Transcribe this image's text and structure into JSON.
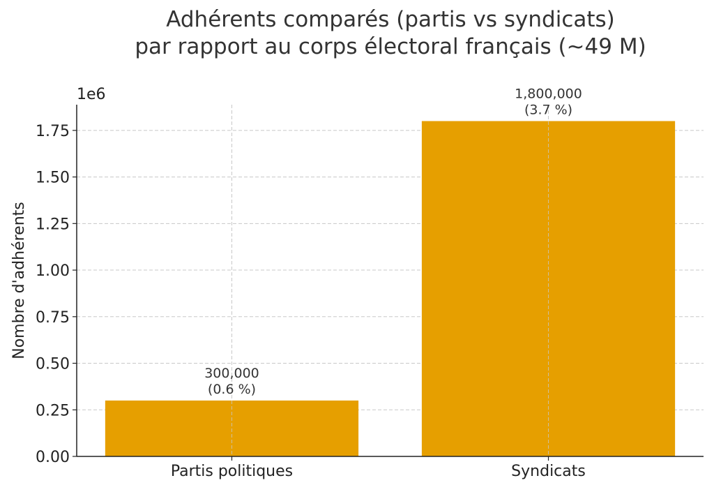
{
  "chart_data": {
    "type": "bar",
    "title_lines": [
      "Adhérents comparés (partis vs syndicats)",
      "par rapport au corps électoral français (~49 M)"
    ],
    "xlabel": "",
    "ylabel": "Nombre d'adhérents",
    "y_offset_label": "1e6",
    "categories": [
      "Partis politiques",
      "Syndicats"
    ],
    "values": [
      300000,
      1800000
    ],
    "data_labels": [
      [
        "300,000",
        "(0.6 %)"
      ],
      [
        "1,800,000",
        "(3.7 %)"
      ]
    ],
    "yticks": [
      0,
      250000,
      500000,
      750000,
      1000000,
      1250000,
      1500000,
      1750000
    ],
    "ytick_labels": [
      "0.00",
      "0.25",
      "0.50",
      "0.75",
      "1.00",
      "1.25",
      "1.50",
      "1.75"
    ],
    "ylim": [
      0,
      1888000
    ],
    "xlim": [
      -0.49,
      1.49
    ],
    "bar_width": 0.8,
    "grid": true,
    "bar_color": "#E69F00"
  }
}
